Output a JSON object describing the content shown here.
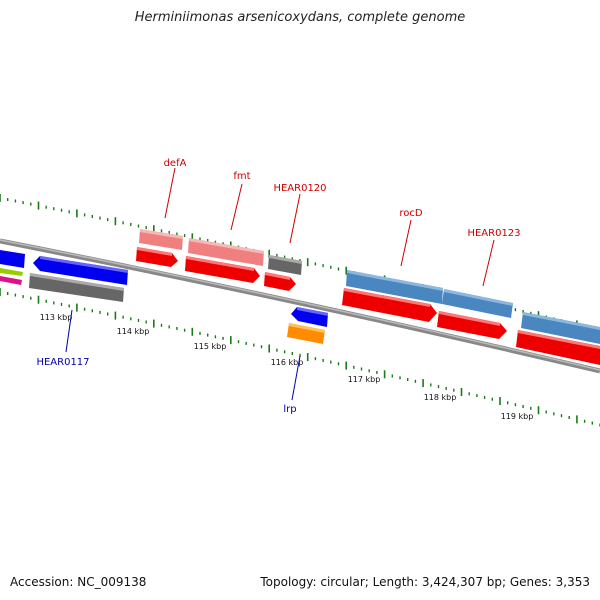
{
  "title": "Herminiimonas arsenicoxydans, complete genome",
  "footer": {
    "accession": "Accession: NC_009138",
    "topology": "Topology: circular; Length: 3,424,307 bp; Genes: 3,353"
  },
  "scale_labels": [
    "113 kbp",
    "114 kbp",
    "115 kbp",
    "116 kbp",
    "117 kbp",
    "118 kbp",
    "119 kbp"
  ],
  "gene_labels": [
    {
      "name": "defA",
      "strand": "forward"
    },
    {
      "name": "fmt",
      "strand": "forward"
    },
    {
      "name": "HEAR0120",
      "strand": "forward"
    },
    {
      "name": "rocD",
      "strand": "forward"
    },
    {
      "name": "HEAR0123",
      "strand": "forward"
    },
    {
      "name": "HEAR0117",
      "strand": "reverse"
    },
    {
      "name": "lrp",
      "strand": "reverse"
    }
  ],
  "colors": {
    "forward_label": "#cc0000",
    "reverse_label": "#0000aa",
    "tick": "#1a7a1a",
    "backbone": "#888888",
    "cds_red": "#ee0000",
    "rrna_pink": "#f08080",
    "gene_gray": "#666666",
    "steel_blue": "#4a86c0",
    "blue": "#0000ee",
    "orange": "#ff8c00",
    "lime": "#99cc00",
    "magenta": "#dd1188"
  }
}
